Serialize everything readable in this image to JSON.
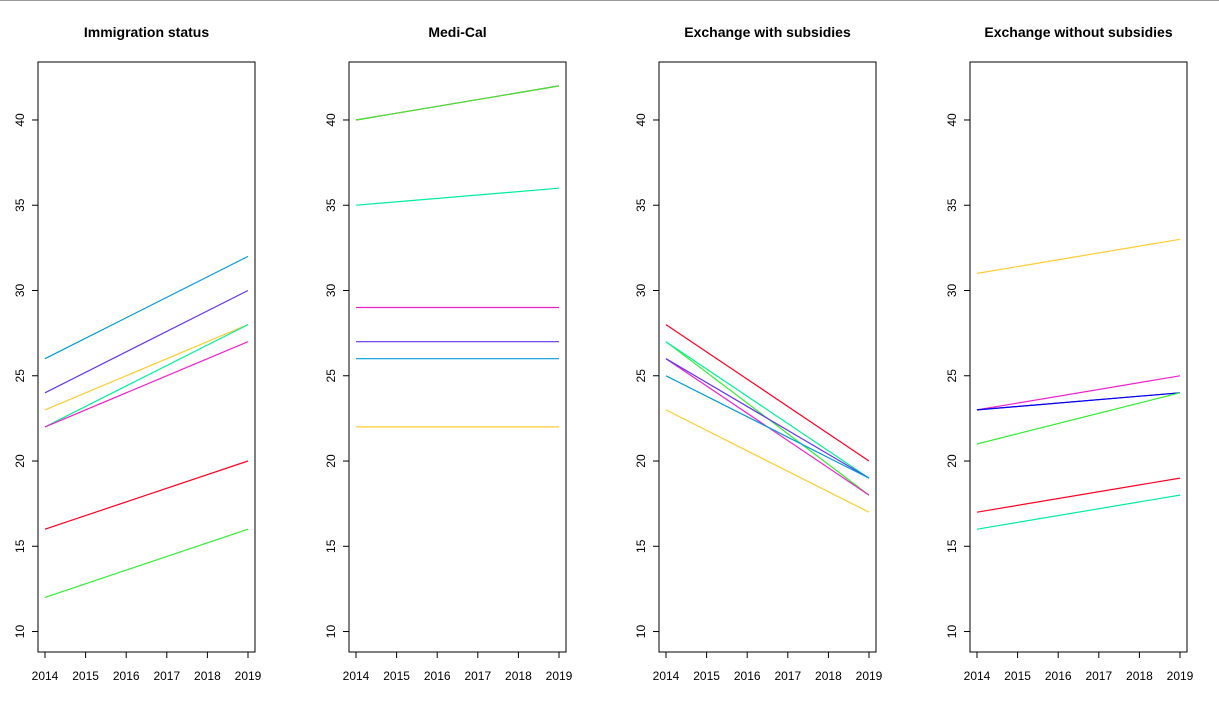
{
  "chart_data": [
    {
      "type": "line",
      "title": "Immigration status",
      "xlabel": "",
      "ylabel": "",
      "x": [
        2014,
        2019
      ],
      "xticks": [
        2014,
        2015,
        2016,
        2017,
        2018,
        2019
      ],
      "yticks": [
        10,
        15,
        20,
        25,
        30,
        35,
        40
      ],
      "ylim": [
        8.8,
        43.4
      ],
      "grid": false,
      "series": [
        {
          "color": "#0099dd",
          "values": [
            26,
            32
          ]
        },
        {
          "color": "#6633ee",
          "values": [
            24,
            30
          ]
        },
        {
          "color": "#ffcc33",
          "values": [
            23,
            28
          ]
        },
        {
          "color": "#00ee99",
          "values": [
            22,
            28
          ]
        },
        {
          "color": "#ee22cc",
          "values": [
            22,
            27
          ]
        },
        {
          "color": "#ff0022",
          "values": [
            16,
            20
          ]
        },
        {
          "color": "#33ee33",
          "values": [
            12,
            16
          ]
        }
      ]
    },
    {
      "type": "line",
      "title": "Medi-Cal",
      "xlabel": "",
      "ylabel": "",
      "x": [
        2014,
        2019
      ],
      "xticks": [
        2014,
        2015,
        2016,
        2017,
        2018,
        2019
      ],
      "yticks": [
        10,
        15,
        20,
        25,
        30,
        35,
        40
      ],
      "ylim": [
        8.8,
        43.4
      ],
      "grid": false,
      "series": [
        {
          "color": "#ff0022",
          "values": [
            40,
            42
          ]
        },
        {
          "color": "#33ee33",
          "values": [
            40,
            42
          ]
        },
        {
          "color": "#00ee99",
          "values": [
            35,
            36
          ]
        },
        {
          "color": "#ee22cc",
          "values": [
            29,
            29
          ]
        },
        {
          "color": "#6633ee",
          "values": [
            27,
            27
          ]
        },
        {
          "color": "#0099dd",
          "values": [
            26,
            26
          ]
        },
        {
          "color": "#ffcc33",
          "values": [
            22,
            22
          ]
        }
      ]
    },
    {
      "type": "line",
      "title": "Exchange with subsidies",
      "xlabel": "",
      "ylabel": "",
      "x": [
        2014,
        2019
      ],
      "xticks": [
        2014,
        2015,
        2016,
        2017,
        2018,
        2019
      ],
      "yticks": [
        10,
        15,
        20,
        25,
        30,
        35,
        40
      ],
      "ylim": [
        8.8,
        43.4
      ],
      "grid": false,
      "series": [
        {
          "color": "#ff0022",
          "values": [
            28,
            20
          ]
        },
        {
          "color": "#33ee33",
          "values": [
            27,
            18
          ]
        },
        {
          "color": "#00ee99",
          "values": [
            27,
            19
          ]
        },
        {
          "color": "#ee22cc",
          "values": [
            26,
            18
          ]
        },
        {
          "color": "#6633ee",
          "values": [
            26,
            19
          ]
        },
        {
          "color": "#0099dd",
          "values": [
            25,
            19
          ]
        },
        {
          "color": "#ffcc33",
          "values": [
            23,
            17
          ]
        }
      ]
    },
    {
      "type": "line",
      "title": "Exchange without subsidies",
      "xlabel": "",
      "ylabel": "",
      "x": [
        2014,
        2019
      ],
      "xticks": [
        2014,
        2015,
        2016,
        2017,
        2018,
        2019
      ],
      "yticks": [
        10,
        15,
        20,
        25,
        30,
        35,
        40
      ],
      "ylim": [
        8.8,
        43.4
      ],
      "grid": false,
      "series": [
        {
          "color": "#ffcc33",
          "values": [
            31,
            33
          ]
        },
        {
          "color": "#ee22cc",
          "values": [
            23,
            25
          ]
        },
        {
          "color": "#6633ee",
          "values": [
            23,
            24
          ]
        },
        {
          "color": "#0000ee",
          "values": [
            23,
            24
          ]
        },
        {
          "color": "#33ee33",
          "values": [
            21,
            24
          ]
        },
        {
          "color": "#ff0022",
          "values": [
            17,
            19
          ]
        },
        {
          "color": "#00ee99",
          "values": [
            16,
            18
          ]
        }
      ]
    }
  ]
}
